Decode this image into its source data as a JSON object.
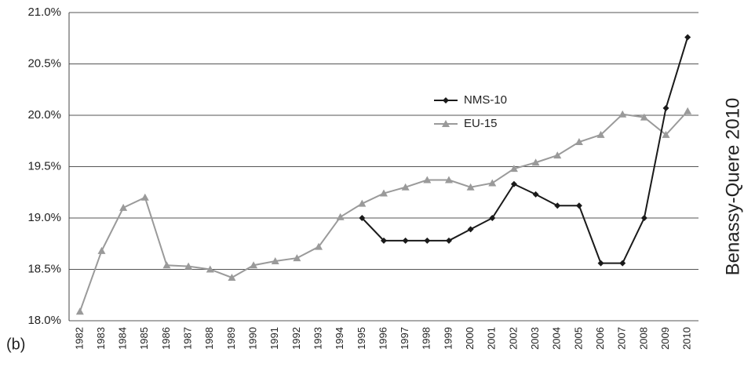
{
  "chart_data": {
    "type": "line",
    "panel_label": "(b)",
    "source": "Benassy-Quere 2010",
    "categories": [
      "1982",
      "1983",
      "1984",
      "1985",
      "1986",
      "1987",
      "1988",
      "1989",
      "1990",
      "1991",
      "1992",
      "1993",
      "1994",
      "1995",
      "1996",
      "1997",
      "1998",
      "1999",
      "2000",
      "2001",
      "2002",
      "2003",
      "2004",
      "2005",
      "2006",
      "2007",
      "2008",
      "2009",
      "2010"
    ],
    "series": [
      {
        "name": "NMS-10",
        "color": "#1a1a1a",
        "marker": "diamond",
        "values": [
          null,
          null,
          null,
          null,
          null,
          null,
          null,
          null,
          null,
          null,
          null,
          null,
          null,
          19.0,
          18.78,
          18.78,
          18.78,
          18.78,
          18.89,
          19.0,
          19.33,
          19.23,
          19.12,
          19.12,
          18.56,
          18.56,
          19.0,
          20.07,
          20.76
        ]
      },
      {
        "name": "EU-15",
        "color": "#9a9a9a",
        "marker": "triangle",
        "values": [
          18.09,
          18.68,
          19.1,
          19.2,
          18.54,
          18.53,
          18.5,
          18.42,
          18.54,
          18.58,
          18.61,
          18.72,
          19.01,
          19.14,
          19.24,
          19.3,
          19.37,
          19.37,
          19.3,
          19.34,
          19.48,
          19.54,
          19.61,
          19.74,
          19.81,
          20.01,
          19.98,
          19.81,
          20.04
        ]
      }
    ],
    "ylim": [
      18.0,
      21.0
    ],
    "yticks": [
      {
        "value": 18.0,
        "label": "18.0%"
      },
      {
        "value": 18.5,
        "label": "18.5%"
      },
      {
        "value": 19.0,
        "label": "19.0%"
      },
      {
        "value": 19.5,
        "label": "19.5%"
      },
      {
        "value": 20.0,
        "label": "20.0%"
      },
      {
        "value": 20.5,
        "label": "20.5%"
      },
      {
        "value": 21.0,
        "label": "21.0%"
      }
    ],
    "grid": true,
    "legend": "center"
  }
}
